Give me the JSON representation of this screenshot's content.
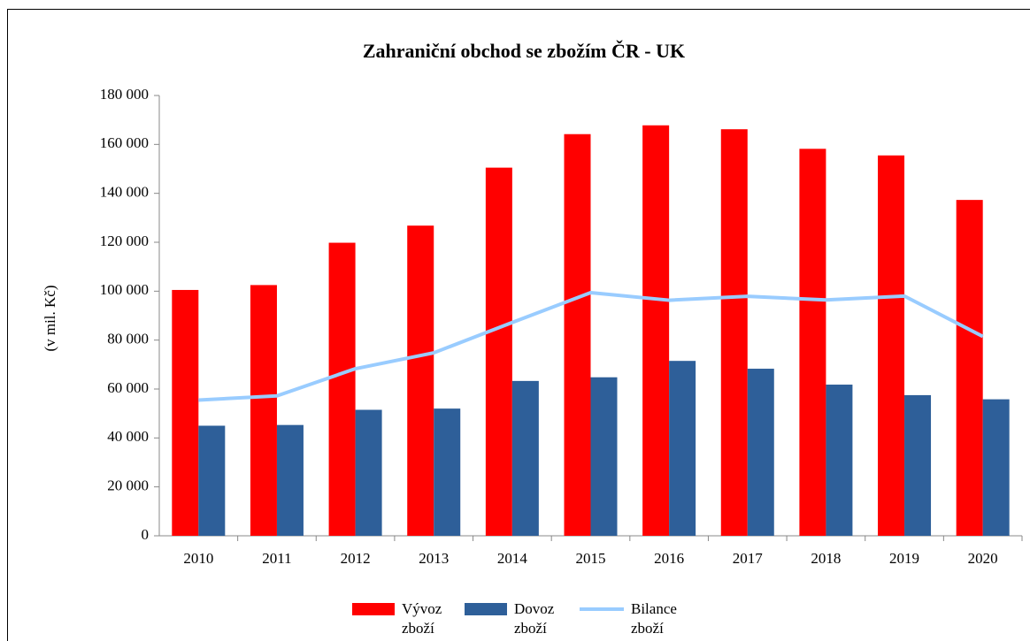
{
  "chart_data": {
    "type": "bar",
    "title": "Zahraniční obchod se zbožím ČR - UK",
    "ylabel": "(v mil. Kč)",
    "categories": [
      "2010",
      "2011",
      "2012",
      "2013",
      "2014",
      "2015",
      "2016",
      "2017",
      "2018",
      "2019",
      "2020"
    ],
    "series": [
      {
        "name": "Vývoz zboží",
        "type": "bar",
        "color": "#ff0000",
        "values": [
          100500,
          102500,
          119800,
          126800,
          150500,
          164200,
          167800,
          166200,
          158200,
          155500,
          137300
        ]
      },
      {
        "name": "Dovoz zboží",
        "type": "bar",
        "color": "#2e5f99",
        "values": [
          45000,
          45300,
          51500,
          52000,
          63300,
          64800,
          71500,
          68300,
          61800,
          57500,
          55800
        ]
      },
      {
        "name": "Bilance zboží",
        "type": "line",
        "color": "#99ccff",
        "values": [
          55500,
          57200,
          68300,
          74800,
          87200,
          99400,
          96300,
          97900,
          96400,
          98000,
          81500
        ]
      }
    ],
    "ylim": [
      0,
      180000
    ],
    "yticks": [
      0,
      {
        "value": 20000,
        "label": "20 000"
      },
      {
        "value": 40000,
        "label": "40 000"
      },
      {
        "value": 60000,
        "label": "60 000"
      },
      {
        "value": 80000,
        "label": "80 000"
      },
      {
        "value": 100000,
        "label": "100 000"
      },
      {
        "value": 120000,
        "label": "120 000"
      },
      {
        "value": 140000,
        "label": "140 000"
      },
      {
        "value": 160000,
        "label": "160 000"
      },
      {
        "value": 180000,
        "label": "180 000"
      }
    ],
    "grid": false
  }
}
